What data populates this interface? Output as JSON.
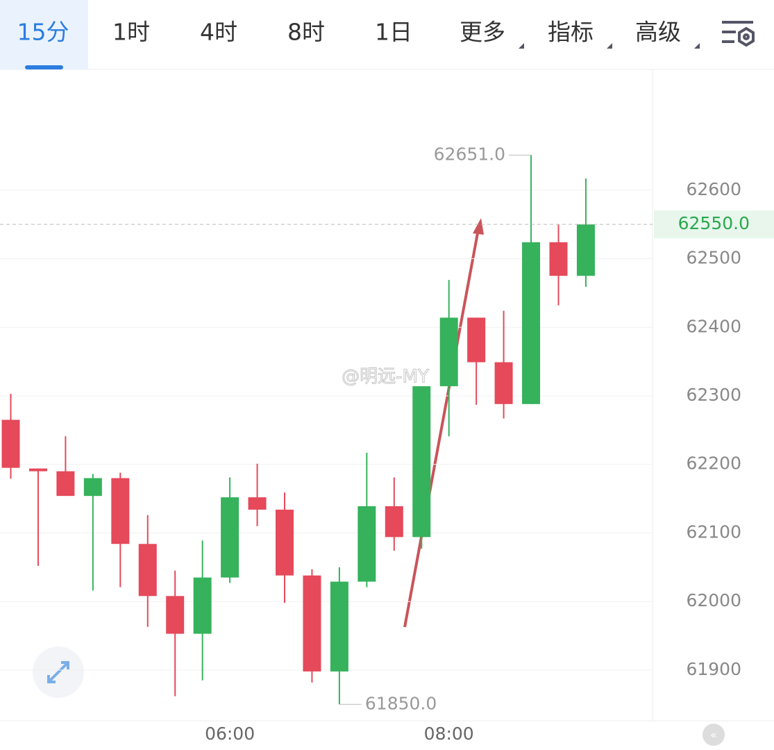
{
  "tabs": [
    "15分",
    "1时",
    "4时",
    "8时",
    "1日",
    "更多",
    "指标",
    "高级"
  ],
  "active_tab": 0,
  "watermark": "@明远-MY",
  "chart_data": {
    "type": "candlestick",
    "categories": [
      null,
      null,
      null,
      null,
      null,
      null,
      null,
      null,
      "06:00",
      null,
      null,
      null,
      null,
      null,
      null,
      null,
      "08:00",
      null,
      null,
      null,
      null,
      null
    ],
    "open": [
      62265,
      62194,
      62190,
      62154,
      62180,
      62084,
      62008,
      61953,
      62035,
      62152,
      62134,
      62038,
      61898,
      62029,
      62139,
      62094,
      62314,
      62414,
      62349,
      62288,
      62524,
      62475
    ],
    "high": [
      62303,
      62194,
      62241,
      62186,
      62188,
      62126,
      62045,
      62089,
      62181,
      62201,
      62159,
      62047,
      62050,
      62217,
      62181,
      62314,
      62469,
      62414,
      62424,
      62651,
      62550,
      62617
    ],
    "low": [
      62179,
      62052,
      62154,
      62016,
      62021,
      61963,
      61862,
      61885,
      62027,
      62110,
      61998,
      61882,
      61850,
      62021,
      62074,
      62077,
      62241,
      62287,
      62267,
      62288,
      62432,
      62459
    ],
    "close": [
      62195,
      62190,
      62154,
      62180,
      62084,
      62008,
      61953,
      62035,
      62152,
      62134,
      62038,
      61898,
      62029,
      62139,
      62094,
      62314,
      62414,
      62349,
      62288,
      62524,
      62475,
      62550
    ],
    "up_color": "#35b25b",
    "down_color": "#e5495a",
    "ylim": [
      61826,
      62776
    ],
    "yticks": [
      61900,
      62000,
      62100,
      62200,
      62300,
      62400,
      62500,
      62600
    ],
    "grid": true,
    "last_price": {
      "value": 62550,
      "label": "62550.0"
    },
    "high_marker": {
      "value": 62651,
      "label": "62651.0"
    },
    "low_marker": {
      "value": 61850,
      "label": "61850.0"
    }
  }
}
